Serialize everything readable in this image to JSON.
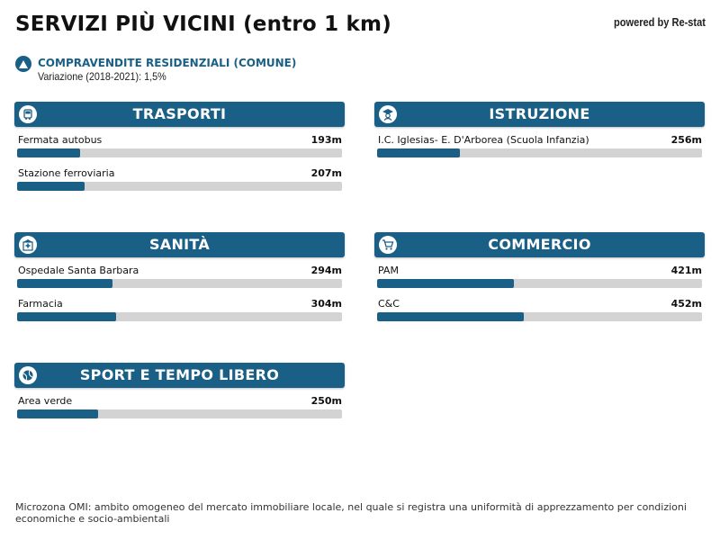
{
  "header": {
    "title": "SERVIZI PIÙ VICINI (entro 1 km)",
    "powered_by": "powered by Re-stat"
  },
  "indicator": {
    "icon": "triangle-up-icon",
    "title": "COMPRAVENDITE RESIDENZIALI (COMUNE)",
    "subtitle": "Variazione (2018-2021): 1,5%"
  },
  "categories": [
    {
      "title": "TRASPORTI",
      "icon": "bus-icon",
      "items": [
        {
          "name": "Fermata autobus",
          "distance": "193m",
          "value": 193
        },
        {
          "name": "Stazione ferroviaria",
          "distance": "207m",
          "value": 207
        }
      ]
    },
    {
      "title": "ISTRUZIONE",
      "icon": "student-icon",
      "items": [
        {
          "name": "I.C. Iglesias- E. D'Arborea (Scuola Infanzia)",
          "distance": "256m",
          "value": 256
        }
      ]
    },
    {
      "title": "SANITÀ",
      "icon": "hospital-icon",
      "items": [
        {
          "name": "Ospedale Santa Barbara",
          "distance": "294m",
          "value": 294
        },
        {
          "name": "Farmacia",
          "distance": "304m",
          "value": 304
        }
      ]
    },
    {
      "title": "COMMERCIO",
      "icon": "shopping-cart-icon",
      "items": [
        {
          "name": "PAM",
          "distance": "421m",
          "value": 421
        },
        {
          "name": "C&C",
          "distance": "452m",
          "value": 452
        }
      ]
    },
    {
      "title": "SPORT E TEMPO LIBERO",
      "icon": "tennis-ball-icon",
      "items": [
        {
          "name": "Area verde",
          "distance": "250m",
          "value": 250
        }
      ]
    }
  ],
  "scale_max_m": 1000,
  "footnote": "Microzona OMI: ambito omogeneo del mercato immobiliare locale, nel quale si registra una uniformità di apprezzamento per condizioni economiche e socio-ambientali",
  "colors": {
    "accent": "#1a5f86",
    "bar_track": "#d3d3d3"
  }
}
